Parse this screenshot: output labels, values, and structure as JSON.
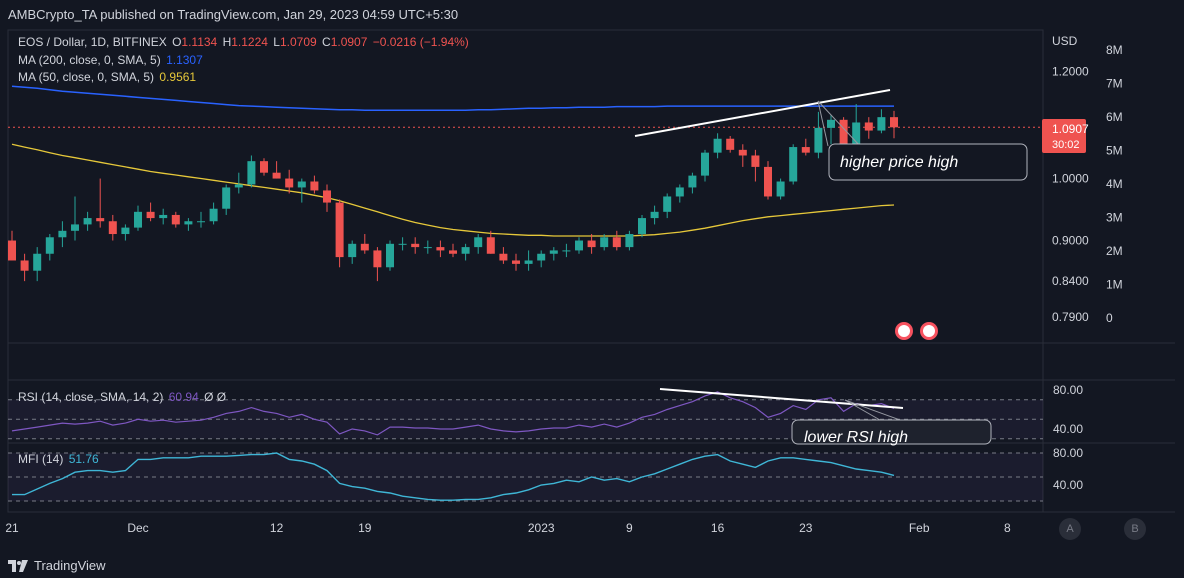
{
  "header": {
    "publisher": "AMBCrypto_TA published on TradingView.com, Jan 29, 2023 04:59 UTC+5:30"
  },
  "legend": {
    "symbol": "EOS / Dollar, 1D, BITFINEX",
    "o_label": "O",
    "o": "1.1134",
    "h_label": "H",
    "h": "1.1224",
    "l_label": "L",
    "l": "1.0709",
    "c_label": "C",
    "c": "1.0907",
    "change": "−0.0216 (−1.94%)",
    "ma200_label": "MA (200, close, 0, SMA, 5)",
    "ma200_value": "1.1307",
    "ma50_label": "MA (50, close, 0, SMA, 5)",
    "ma50_value": "0.9561",
    "rsi_label": "RSI (14, close, SMA, 14, 2)",
    "rsi_value": "60.94",
    "rsi_extra": "Ø  Ø",
    "mfi_label": "MFI (14)",
    "mfi_value": "51.76"
  },
  "annotations": {
    "price": "higher price high",
    "rsi": "lower RSI high"
  },
  "price_axis": {
    "currency": "USD",
    "last_price": "1.0907",
    "countdown": "30:02"
  },
  "footer": {
    "brand": "TradingView"
  },
  "scale_buttons": [
    "A",
    "B"
  ],
  "colors": {
    "up": "#26a69a",
    "down": "#ef5350",
    "ma200": "#2962ff",
    "ma50": "#e6c83a",
    "rsi": "#7e57c2",
    "mfi": "#3fb6d6",
    "bg": "#131722"
  },
  "chart_data": [
    {
      "type": "candlestick",
      "series_name": "EOS / Dollar",
      "y_ticks": [
        1.2,
        1.0,
        0.9,
        0.84,
        0.79
      ],
      "y_tick_labels": [
        "1.2000",
        "1.0000",
        "0.9000",
        "0.8400",
        "0.7900"
      ],
      "volume_ticks": [
        "8M",
        "7M",
        "6M",
        "5M",
        "4M",
        "3M",
        "2M",
        "1M",
        "0"
      ],
      "x_ticks": [
        "21",
        "Dec",
        "12",
        "19",
        "2023",
        "9",
        "16",
        "23",
        "Feb",
        "8"
      ],
      "x_tick_index": [
        0,
        10,
        21,
        28,
        42,
        49,
        56,
        63,
        72,
        79
      ],
      "candles": [
        [
          0.9,
          0.915,
          0.87,
          0.87
        ],
        [
          0.87,
          0.88,
          0.84,
          0.855
        ],
        [
          0.855,
          0.89,
          0.84,
          0.88
        ],
        [
          0.88,
          0.91,
          0.87,
          0.905
        ],
        [
          0.905,
          0.93,
          0.89,
          0.915
        ],
        [
          0.915,
          0.97,
          0.9,
          0.925
        ],
        [
          0.925,
          0.945,
          0.915,
          0.935
        ],
        [
          0.935,
          1.0,
          0.92,
          0.93
        ],
        [
          0.93,
          0.94,
          0.9,
          0.91
        ],
        [
          0.91,
          0.925,
          0.9,
          0.92
        ],
        [
          0.92,
          0.955,
          0.915,
          0.945
        ],
        [
          0.945,
          0.96,
          0.93,
          0.935
        ],
        [
          0.935,
          0.95,
          0.925,
          0.94
        ],
        [
          0.94,
          0.945,
          0.92,
          0.925
        ],
        [
          0.925,
          0.935,
          0.915,
          0.93
        ],
        [
          0.93,
          0.945,
          0.92,
          0.93
        ],
        [
          0.93,
          0.96,
          0.925,
          0.95
        ],
        [
          0.95,
          0.99,
          0.94,
          0.985
        ],
        [
          0.985,
          1.01,
          0.975,
          0.99
        ],
        [
          0.99,
          1.04,
          0.985,
          1.03
        ],
        [
          1.03,
          1.035,
          1.005,
          1.01
        ],
        [
          1.01,
          1.03,
          1.0,
          1.0
        ],
        [
          1.0,
          1.015,
          0.975,
          0.985
        ],
        [
          0.985,
          1.0,
          0.96,
          0.995
        ],
        [
          0.995,
          1.005,
          0.975,
          0.98
        ],
        [
          0.98,
          0.99,
          0.945,
          0.96
        ],
        [
          0.96,
          0.965,
          0.86,
          0.875
        ],
        [
          0.875,
          0.9,
          0.865,
          0.895
        ],
        [
          0.895,
          0.91,
          0.88,
          0.885
        ],
        [
          0.885,
          0.89,
          0.84,
          0.86
        ],
        [
          0.86,
          0.9,
          0.855,
          0.895
        ],
        [
          0.895,
          0.905,
          0.885,
          0.895
        ],
        [
          0.895,
          0.905,
          0.88,
          0.89
        ],
        [
          0.89,
          0.9,
          0.88,
          0.89
        ],
        [
          0.89,
          0.9,
          0.875,
          0.885
        ],
        [
          0.885,
          0.895,
          0.875,
          0.88
        ],
        [
          0.88,
          0.895,
          0.87,
          0.89
        ],
        [
          0.89,
          0.91,
          0.88,
          0.905
        ],
        [
          0.905,
          0.915,
          0.88,
          0.88
        ],
        [
          0.88,
          0.89,
          0.865,
          0.87
        ],
        [
          0.87,
          0.88,
          0.855,
          0.865
        ],
        [
          0.865,
          0.885,
          0.855,
          0.87
        ],
        [
          0.87,
          0.885,
          0.86,
          0.88
        ],
        [
          0.88,
          0.89,
          0.87,
          0.885
        ],
        [
          0.885,
          0.895,
          0.875,
          0.885
        ],
        [
          0.885,
          0.905,
          0.88,
          0.9
        ],
        [
          0.9,
          0.91,
          0.88,
          0.89
        ],
        [
          0.89,
          0.91,
          0.885,
          0.905
        ],
        [
          0.905,
          0.915,
          0.885,
          0.89
        ],
        [
          0.89,
          0.915,
          0.885,
          0.91
        ],
        [
          0.91,
          0.94,
          0.905,
          0.935
        ],
        [
          0.935,
          0.955,
          0.925,
          0.945
        ],
        [
          0.945,
          0.975,
          0.935,
          0.97
        ],
        [
          0.97,
          0.99,
          0.96,
          0.985
        ],
        [
          0.985,
          1.01,
          0.975,
          1.005
        ],
        [
          1.005,
          1.05,
          0.995,
          1.045
        ],
        [
          1.045,
          1.08,
          1.035,
          1.07
        ],
        [
          1.07,
          1.075,
          1.045,
          1.05
        ],
        [
          1.05,
          1.06,
          1.02,
          1.04
        ],
        [
          1.04,
          1.05,
          0.995,
          1.02
        ],
        [
          1.02,
          1.03,
          0.965,
          0.97
        ],
        [
          0.97,
          1.0,
          0.965,
          0.995
        ],
        [
          0.995,
          1.06,
          0.99,
          1.055
        ],
        [
          1.055,
          1.07,
          1.04,
          1.045
        ],
        [
          1.045,
          1.12,
          1.035,
          1.09
        ],
        [
          1.09,
          1.115,
          1.06,
          1.105
        ],
        [
          1.105,
          1.11,
          1.035,
          1.045
        ],
        [
          1.045,
          1.135,
          1.04,
          1.1
        ],
        [
          1.1,
          1.11,
          1.07,
          1.085
        ],
        [
          1.085,
          1.125,
          1.08,
          1.11
        ],
        [
          1.11,
          1.122,
          1.071,
          1.091
        ]
      ],
      "ma200": [
        1.17,
        1.168,
        1.166,
        1.163,
        1.16,
        1.158,
        1.156,
        1.154,
        1.152,
        1.15,
        1.148,
        1.146,
        1.144,
        1.142,
        1.14,
        1.138,
        1.136,
        1.134,
        1.132,
        1.131,
        1.13,
        1.129,
        1.128,
        1.127,
        1.126,
        1.125,
        1.124,
        1.124,
        1.123,
        1.123,
        1.123,
        1.123,
        1.123,
        1.123,
        1.123,
        1.123,
        1.123,
        1.124,
        1.124,
        1.125,
        1.126,
        1.127,
        1.127,
        1.128,
        1.128,
        1.129,
        1.129,
        1.129,
        1.13,
        1.13,
        1.13,
        1.13,
        1.131,
        1.131,
        1.131,
        1.131,
        1.131,
        1.131,
        1.131,
        1.131,
        1.131,
        1.131,
        1.131,
        1.131,
        1.131,
        1.131,
        1.131,
        1.131,
        1.131,
        1.131,
        1.131
      ],
      "ma50": [
        1.06,
        1.055,
        1.05,
        1.045,
        1.04,
        1.036,
        1.032,
        1.028,
        1.024,
        1.02,
        1.016,
        1.012,
        1.009,
        1.006,
        1.003,
        1.0,
        0.997,
        0.994,
        0.991,
        0.988,
        0.985,
        0.982,
        0.979,
        0.976,
        0.972,
        0.968,
        0.963,
        0.957,
        0.951,
        0.945,
        0.939,
        0.933,
        0.928,
        0.924,
        0.92,
        0.917,
        0.915,
        0.913,
        0.911,
        0.91,
        0.909,
        0.908,
        0.908,
        0.907,
        0.907,
        0.907,
        0.907,
        0.907,
        0.907,
        0.907,
        0.908,
        0.909,
        0.911,
        0.913,
        0.916,
        0.919,
        0.923,
        0.927,
        0.931,
        0.934,
        0.937,
        0.939,
        0.941,
        0.943,
        0.945,
        0.947,
        0.949,
        0.951,
        0.953,
        0.955,
        0.956
      ]
    },
    {
      "type": "line",
      "series_name": "RSI",
      "y_ticks": [
        80,
        40
      ],
      "values": [
        38,
        40,
        42,
        44,
        46,
        45,
        46,
        48,
        44,
        46,
        50,
        48,
        49,
        47,
        48,
        49,
        52,
        56,
        58,
        62,
        58,
        56,
        52,
        55,
        50,
        47,
        35,
        40,
        38,
        34,
        42,
        42,
        41,
        41,
        40,
        40,
        42,
        44,
        40,
        38,
        37,
        38,
        40,
        41,
        41,
        44,
        42,
        45,
        42,
        46,
        52,
        55,
        60,
        64,
        68,
        74,
        78,
        72,
        68,
        62,
        52,
        56,
        64,
        60,
        70,
        72,
        58,
        66,
        64,
        66,
        61
      ]
    },
    {
      "type": "line",
      "series_name": "MFI",
      "y_ticks": [
        80,
        40
      ],
      "values": [
        28,
        28,
        35,
        42,
        48,
        56,
        58,
        58,
        56,
        58,
        72,
        72,
        74,
        74,
        74,
        76,
        76,
        76,
        77,
        78,
        78,
        80,
        72,
        70,
        66,
        58,
        42,
        38,
        36,
        32,
        30,
        26,
        24,
        22,
        21,
        21,
        22,
        22,
        24,
        28,
        30,
        34,
        40,
        42,
        46,
        44,
        50,
        46,
        48,
        44,
        50,
        54,
        60,
        66,
        72,
        76,
        78,
        70,
        66,
        62,
        70,
        74,
        74,
        72,
        70,
        68,
        64,
        60,
        58,
        56,
        52
      ]
    }
  ]
}
